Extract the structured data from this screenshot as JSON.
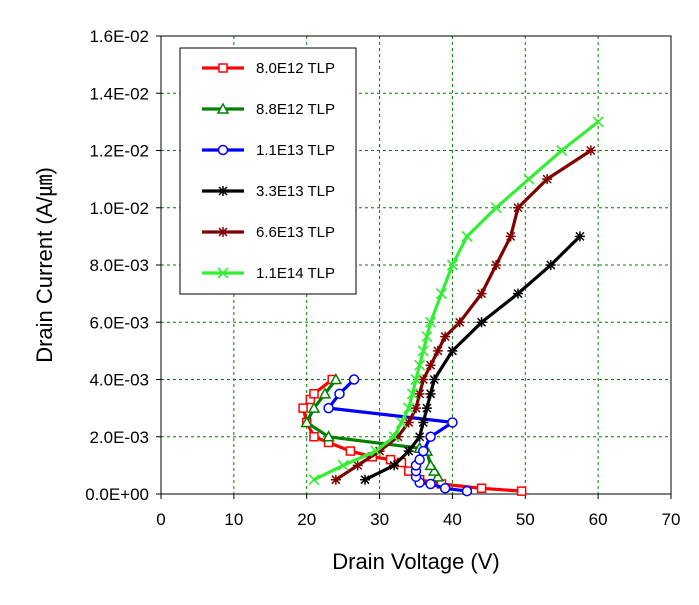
{
  "chart_data": {
    "type": "scatter",
    "xlabel": "Drain Voltage (V)",
    "ylabel": "Drain Current (A/㎛)",
    "xlim": [
      0,
      70
    ],
    "ylim": [
      0,
      0.016
    ],
    "x_ticks": [
      "0",
      "10",
      "20",
      "30",
      "40",
      "50",
      "60",
      "70"
    ],
    "y_ticks": [
      "0.0E+00",
      "2.0E-03",
      "4.0E-03",
      "6.0E-03",
      "8.0E-03",
      "1.0E-02",
      "1.2E-02",
      "1.4E-02",
      "1.6E-02"
    ],
    "grid": true,
    "legend_position": "top-left",
    "series": [
      {
        "name": "8.0E12  TLP",
        "color": "#ff0000",
        "marker": "square",
        "points": [
          [
            49.5,
            0.0001
          ],
          [
            44,
            0.0002
          ],
          [
            38.5,
            0.00035
          ],
          [
            35.5,
            0.0005
          ],
          [
            34,
            0.0008
          ],
          [
            33,
            0.0011
          ],
          [
            31.5,
            0.0012
          ],
          [
            29,
            0.0013
          ],
          [
            26,
            0.0015
          ],
          [
            23,
            0.0018
          ],
          [
            21,
            0.002
          ],
          [
            20,
            0.0025
          ],
          [
            19.5,
            0.003
          ],
          [
            20.5,
            0.0033
          ],
          [
            21,
            0.0035
          ],
          [
            23.5,
            0.004
          ]
        ]
      },
      {
        "name": "8.8E12  TLP",
        "color": "#008000",
        "marker": "triangle",
        "points": [
          [
            38,
            0.0006
          ],
          [
            37.5,
            0.0008
          ],
          [
            37,
            0.001
          ],
          [
            36.5,
            0.0015
          ],
          [
            35.5,
            0.0016
          ],
          [
            23,
            0.002
          ],
          [
            20,
            0.0025
          ],
          [
            21,
            0.003
          ],
          [
            22.5,
            0.0035
          ],
          [
            24,
            0.004
          ]
        ]
      },
      {
        "name": "1.1E13  TLP",
        "color": "#0000ff",
        "marker": "circle",
        "points": [
          [
            42,
            0.0001
          ],
          [
            39,
            0.0002
          ],
          [
            37,
            0.00035
          ],
          [
            35.5,
            0.0004
          ],
          [
            35,
            0.0006
          ],
          [
            35,
            0.0008
          ],
          [
            35,
            0.001
          ],
          [
            35.5,
            0.0012
          ],
          [
            36,
            0.0015
          ],
          [
            37,
            0.002
          ],
          [
            40,
            0.0025
          ],
          [
            23,
            0.003
          ],
          [
            24.5,
            0.0035
          ],
          [
            26.5,
            0.004
          ]
        ]
      },
      {
        "name": "3.3E13  TLP",
        "color": "#000000",
        "marker": "star",
        "points": [
          [
            28,
            0.0005
          ],
          [
            32,
            0.001
          ],
          [
            34,
            0.0015
          ],
          [
            35.5,
            0.002
          ],
          [
            36,
            0.0025
          ],
          [
            36.5,
            0.003
          ],
          [
            37,
            0.0035
          ],
          [
            37.5,
            0.004
          ],
          [
            40,
            0.005
          ],
          [
            44,
            0.006
          ],
          [
            49,
            0.007
          ],
          [
            53.5,
            0.008
          ],
          [
            57.5,
            0.009
          ]
        ]
      },
      {
        "name": "6.6E13  TLP",
        "color": "#800000",
        "marker": "star",
        "points": [
          [
            24,
            0.0005
          ],
          [
            27,
            0.001
          ],
          [
            30,
            0.0015
          ],
          [
            32.5,
            0.002
          ],
          [
            34,
            0.0025
          ],
          [
            35,
            0.003
          ],
          [
            35.5,
            0.0035
          ],
          [
            36,
            0.004
          ],
          [
            37,
            0.0045
          ],
          [
            38,
            0.005
          ],
          [
            39,
            0.0055
          ],
          [
            41,
            0.006
          ],
          [
            44,
            0.007
          ],
          [
            46,
            0.008
          ],
          [
            48,
            0.009
          ],
          [
            49,
            0.01
          ],
          [
            53,
            0.011
          ],
          [
            59,
            0.012
          ]
        ]
      },
      {
        "name": "1.1E14  TLP",
        "color": "#33ee33",
        "marker": "x",
        "points": [
          [
            21,
            0.0005
          ],
          [
            25,
            0.001
          ],
          [
            29.5,
            0.0015
          ],
          [
            32,
            0.002
          ],
          [
            33,
            0.0025
          ],
          [
            34,
            0.003
          ],
          [
            34.5,
            0.0035
          ],
          [
            35,
            0.004
          ],
          [
            35.5,
            0.0045
          ],
          [
            36,
            0.005
          ],
          [
            36.5,
            0.0055
          ],
          [
            37,
            0.006
          ],
          [
            38.5,
            0.007
          ],
          [
            40,
            0.008
          ],
          [
            42,
            0.009
          ],
          [
            46,
            0.01
          ],
          [
            50.5,
            0.011
          ],
          [
            55,
            0.012
          ],
          [
            60,
            0.013
          ]
        ]
      }
    ]
  }
}
